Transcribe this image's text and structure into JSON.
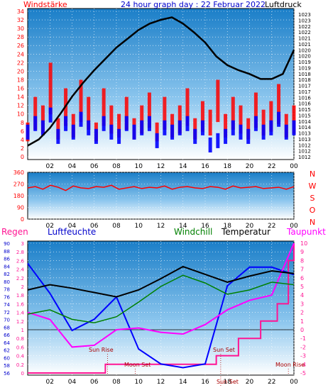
{
  "title": "24 hour graph day : 22 Februar 2022",
  "colors": {
    "wind": "#ff0000",
    "gust": "#0000ff",
    "pressure": "#000000",
    "direction": "#ff0000",
    "rain": "#ff1493",
    "humidity": "#0000ff",
    "windchill": "#008000",
    "temperature": "#000000",
    "dewpoint": "#ff00ff",
    "grid": "#ffffff",
    "label_red": "#ff0000",
    "label_blue": "#0000cc",
    "bg_top": "#1a7ec8",
    "bg_bottom": "#ffffff"
  },
  "chart_data": [
    {
      "type": "line",
      "title": "24 hour graph day : 22 Februar 2022",
      "left_label": "Windstärke",
      "right_label": "Luftdruck",
      "x_ticks": [
        "02",
        "04",
        "06",
        "08",
        "10",
        "12",
        "14",
        "16",
        "18",
        "20",
        "22",
        "00"
      ],
      "left_ticks": [
        "34",
        "32",
        "30",
        "28",
        "26",
        "24",
        "22",
        "20",
        "18",
        "16",
        "14",
        "12",
        "10",
        "8",
        "6",
        "4",
        "2",
        "0"
      ],
      "right_ticks": [
        "1023",
        "1023",
        "1022",
        "1022",
        "1021",
        "1021",
        "1020",
        "1020",
        "1019",
        "1019",
        "1018",
        "1018",
        "1017",
        "1017",
        "1016",
        "1016",
        "1015",
        "1015",
        "1014",
        "1014",
        "1013",
        "1013",
        "1012",
        "1012",
        "1012"
      ],
      "ylim_left": [
        0,
        34
      ],
      "ylim_right": [
        1011.5,
        1023.5
      ],
      "series": [
        {
          "key": "wind",
          "values": [
            8,
            14,
            12,
            22,
            9,
            16,
            10,
            18,
            14,
            8,
            16,
            12,
            10,
            14,
            9,
            12,
            15,
            8,
            14,
            10,
            12,
            16,
            9,
            13,
            11,
            18,
            10,
            14,
            12,
            9,
            15,
            11,
            13,
            17,
            10,
            12
          ]
        },
        {
          "key": "gust",
          "values": [
            4,
            6,
            5,
            8,
            3,
            6,
            4,
            7,
            5,
            3,
            6,
            4,
            3,
            6,
            4,
            5,
            6,
            2,
            5,
            4,
            5,
            6,
            3,
            5,
            1,
            2,
            3,
            5,
            4,
            3,
            6,
            4,
            5,
            7,
            4,
            5
          ]
        },
        {
          "key": "pressure",
          "x": [
            0,
            1,
            2,
            3,
            4,
            5,
            6,
            7,
            8,
            9,
            10,
            11,
            12,
            13,
            14,
            15,
            16,
            17,
            18,
            19,
            20,
            21,
            22,
            23,
            24
          ],
          "values": [
            1012.6,
            1013.1,
            1014.0,
            1015.2,
            1016.5,
            1017.6,
            1018.6,
            1019.5,
            1020.4,
            1021.1,
            1021.8,
            1022.3,
            1022.6,
            1022.8,
            1022.3,
            1021.6,
            1020.8,
            1019.7,
            1019.0,
            1018.6,
            1018.3,
            1017.9,
            1017.9,
            1018.3,
            1020.2
          ]
        }
      ]
    },
    {
      "type": "line",
      "right_label_letters": [
        "N",
        "W",
        "S",
        "O",
        "N"
      ],
      "left_ticks": [
        "360",
        "270",
        "180",
        "90",
        "0"
      ],
      "x_ticks": [
        "02",
        "04",
        "06",
        "08",
        "10",
        "12",
        "14",
        "16",
        "18",
        "20",
        "22",
        "00"
      ],
      "ylim": [
        0,
        360
      ],
      "series": [
        {
          "key": "direction",
          "values": [
            240,
            250,
            230,
            260,
            245,
            220,
            255,
            240,
            235,
            250,
            245,
            260,
            230,
            240,
            250,
            235,
            245,
            240,
            255,
            230,
            245,
            250,
            240,
            235,
            250,
            245,
            230,
            255,
            240,
            245,
            250,
            235,
            240,
            245,
            230,
            250
          ]
        }
      ]
    },
    {
      "type": "line",
      "labels": {
        "rain": "Regen",
        "humidity": "Luftfeuchte",
        "windchill": "Windchill",
        "temperature": "Temperatur",
        "dewpoint": "Taupunkt"
      },
      "left_ticks_humidity": [
        "90",
        "88",
        "86",
        "84",
        "82",
        "80",
        "78",
        "76",
        "74",
        "72",
        "70",
        "68",
        "66",
        "64",
        "62",
        "60",
        "58",
        "56"
      ],
      "left_ticks_rain": [
        "3",
        "2.8",
        "2.6",
        "2.4",
        "2.2",
        "2",
        "1.8",
        "1.6",
        "1.4",
        "1.2",
        "1",
        "0.8",
        "0.6",
        "0.4",
        "0.2",
        "0"
      ],
      "right_ticks": [
        "10",
        "9",
        "8",
        "7",
        "6",
        "5",
        "4",
        "3",
        "2",
        "1",
        "0",
        "-1",
        "-2",
        "-3",
        "-4",
        "-5"
      ],
      "x_ticks": [
        "02",
        "04",
        "06",
        "08",
        "10",
        "12",
        "14",
        "16",
        "18",
        "20",
        "22",
        "00"
      ],
      "ylim_humidity": [
        55,
        91
      ],
      "ylim_temp": [
        -5,
        10
      ],
      "annotations": [
        "Sun Rise",
        "Moon Set",
        "Sun Set",
        "Sun Set",
        "Moon Rise"
      ],
      "series": [
        {
          "key": "temperature",
          "x": [
            0,
            2,
            4,
            6,
            8,
            10,
            12,
            14,
            16,
            18,
            20,
            22,
            24
          ],
          "values": [
            4.6,
            5.2,
            4.8,
            4.3,
            3.8,
            4.6,
            5.9,
            7.3,
            6.4,
            5.5,
            6.2,
            6.8,
            6.5
          ]
        },
        {
          "key": "windchill",
          "x": [
            0,
            2,
            4,
            6,
            8,
            10,
            12,
            14,
            16,
            18,
            20,
            22,
            24
          ],
          "values": [
            1.8,
            2.3,
            1.2,
            0.8,
            1.5,
            3.2,
            5.0,
            6.3,
            5.4,
            4.1,
            4.6,
            5.5,
            5.2
          ]
        },
        {
          "key": "dewpoint",
          "x": [
            0,
            2,
            4,
            6,
            8,
            10,
            12,
            14,
            16,
            18,
            20,
            22,
            24
          ],
          "values": [
            2.0,
            1.2,
            -2.0,
            -1.8,
            0.0,
            0.2,
            -0.3,
            -0.5,
            0.6,
            2.3,
            3.4,
            4.0,
            10.0
          ]
        },
        {
          "key": "humidity",
          "x": [
            0,
            2,
            4,
            6,
            8,
            10,
            12,
            14,
            16,
            18,
            20,
            22,
            24
          ],
          "values": [
            85,
            77,
            67,
            70,
            76,
            62,
            58,
            57,
            58,
            79,
            84,
            84,
            82
          ]
        },
        {
          "key": "rain",
          "x": [
            0,
            3.5,
            7,
            12,
            17,
            19,
            21,
            22.5,
            23.5,
            24
          ],
          "values": [
            0,
            0,
            0.2,
            0.2,
            0.4,
            0.8,
            1.2,
            1.6,
            2.6,
            3
          ]
        }
      ]
    }
  ]
}
